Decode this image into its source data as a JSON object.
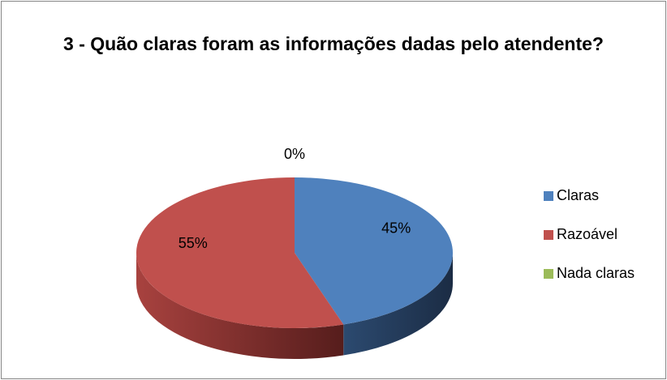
{
  "chart_data": {
    "type": "pie",
    "title": "3 - Quão claras foram as informações dadas pelo atendente?",
    "categories": [
      "Claras",
      "Razoável",
      "Nada claras"
    ],
    "values": [
      45,
      55,
      0
    ],
    "value_labels": [
      "45%",
      "55%",
      "0%"
    ],
    "colors": [
      "#4f81bd",
      "#c0504d",
      "#9bbb59"
    ],
    "legend": "right"
  }
}
